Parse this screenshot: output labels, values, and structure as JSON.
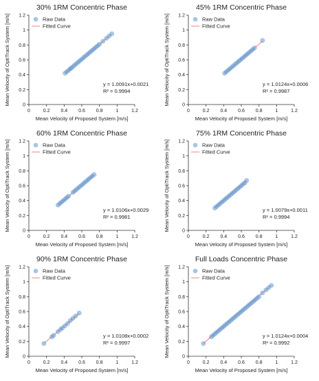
{
  "chart_data": [
    {
      "type": "scatter",
      "title": "30% 1RM Concentric Phase",
      "xlabel": "Mean Velocity of Proposed System [m/s]",
      "ylabel": "Mean Velocity of OptiTrack System [m/s]",
      "xlim": [
        0,
        1.2
      ],
      "ylim": [
        0,
        1.2
      ],
      "xticks": [
        "0",
        "0.2",
        "0.4",
        "0.6",
        "0.8",
        "1",
        "1.2"
      ],
      "yticks": [
        "0",
        "0.2",
        "0.4",
        "0.6",
        "0.8",
        "1",
        "1.2"
      ],
      "legend": [
        "Raw Data",
        "Fitted Curve"
      ],
      "legend_position": "top-left",
      "equation": "y = 1.0091x+0.0021",
      "r2": "R² = 0.9994",
      "fit": {
        "slope": 1.0091,
        "intercept": 0.0021
      },
      "x": [
        0.41,
        0.43,
        0.45,
        0.47,
        0.48,
        0.5,
        0.52,
        0.54,
        0.56,
        0.58,
        0.6,
        0.62,
        0.64,
        0.66,
        0.68,
        0.7,
        0.72,
        0.74,
        0.76,
        0.78,
        0.8,
        0.84,
        0.88,
        0.91,
        0.94
      ],
      "y": [
        0.42,
        0.44,
        0.46,
        0.48,
        0.49,
        0.51,
        0.53,
        0.55,
        0.57,
        0.59,
        0.61,
        0.63,
        0.65,
        0.67,
        0.69,
        0.71,
        0.73,
        0.75,
        0.77,
        0.79,
        0.81,
        0.85,
        0.89,
        0.92,
        0.95
      ]
    },
    {
      "type": "scatter",
      "title": "45% 1RM Concentric Phase",
      "xlabel": "Mean Velocity of Proposed System [m/s]",
      "ylabel": "Mean Velocity of OptiTrack System [m/s]",
      "xlim": [
        0,
        1.2
      ],
      "ylim": [
        0,
        1.2
      ],
      "xticks": [
        "0",
        "0.2",
        "0.4",
        "0.6",
        "0.8",
        "1",
        "1.2"
      ],
      "yticks": [
        "0",
        "0.2",
        "0.4",
        "0.6",
        "0.8",
        "1",
        "1.2"
      ],
      "legend": [
        "Raw Data",
        "Fitted Curve"
      ],
      "legend_position": "top-left",
      "equation": "y = 1.0124x+0.0006",
      "r2": "R² = 0.9987",
      "fit": {
        "slope": 1.0124,
        "intercept": 0.0006
      },
      "x": [
        0.41,
        0.43,
        0.45,
        0.47,
        0.49,
        0.51,
        0.53,
        0.55,
        0.57,
        0.59,
        0.61,
        0.63,
        0.65,
        0.67,
        0.69,
        0.71,
        0.73,
        0.75,
        0.84
      ],
      "y": [
        0.42,
        0.44,
        0.46,
        0.48,
        0.5,
        0.52,
        0.54,
        0.56,
        0.58,
        0.6,
        0.62,
        0.64,
        0.66,
        0.68,
        0.7,
        0.72,
        0.74,
        0.76,
        0.86
      ]
    },
    {
      "type": "scatter",
      "title": "60% 1RM Concentric Phase",
      "xlabel": "Mean Velocity of Proposed System [m/s]",
      "ylabel": "Mean Velocity of OptiTrack System [m/s]",
      "xlim": [
        0,
        1.2
      ],
      "ylim": [
        0,
        1.2
      ],
      "xticks": [
        "0",
        "0.2",
        "0.4",
        "0.6",
        "0.8",
        "1",
        "1.2"
      ],
      "yticks": [
        "0",
        "0.2",
        "0.4",
        "0.6",
        "0.8",
        "1",
        "1.2"
      ],
      "legend": [
        "Raw Data",
        "Fitted Curve"
      ],
      "legend_position": "top-left",
      "equation": "y = 1.0106x+0.0029",
      "r2": "R² = 0.9981",
      "fit": {
        "slope": 1.0106,
        "intercept": 0.0029
      },
      "x": [
        0.33,
        0.35,
        0.37,
        0.39,
        0.41,
        0.43,
        0.45,
        0.5,
        0.52,
        0.54,
        0.56,
        0.58,
        0.6,
        0.62,
        0.64,
        0.66,
        0.68,
        0.7,
        0.72,
        0.74
      ],
      "y": [
        0.34,
        0.36,
        0.38,
        0.4,
        0.42,
        0.44,
        0.46,
        0.51,
        0.53,
        0.55,
        0.57,
        0.59,
        0.61,
        0.63,
        0.65,
        0.67,
        0.69,
        0.71,
        0.73,
        0.75
      ]
    },
    {
      "type": "scatter",
      "title": "75% 1RM Concentric Phase",
      "xlabel": "Mean Velocity of Proposed System [m/s]",
      "ylabel": "Mean Velocity of OptiTrack System [m/s]",
      "xlim": [
        0,
        1.2
      ],
      "ylim": [
        0,
        1.2
      ],
      "xticks": [
        "0",
        "0.2",
        "0.4",
        "0.6",
        "0.8",
        "1",
        "1.2"
      ],
      "yticks": [
        "0",
        "0.2",
        "0.4",
        "0.6",
        "0.8",
        "1",
        "1.2"
      ],
      "legend": [
        "Raw Data",
        "Fitted Curve"
      ],
      "legend_position": "top-left",
      "equation": "y = 1.0079x+0.0011",
      "r2": "R² = 0.9994",
      "fit": {
        "slope": 1.0079,
        "intercept": 0.0011
      },
      "x": [
        0.3,
        0.32,
        0.34,
        0.36,
        0.38,
        0.4,
        0.42,
        0.44,
        0.46,
        0.48,
        0.5,
        0.52,
        0.54,
        0.56,
        0.58,
        0.6,
        0.62,
        0.64,
        0.66
      ],
      "y": [
        0.3,
        0.32,
        0.34,
        0.36,
        0.38,
        0.4,
        0.42,
        0.44,
        0.46,
        0.48,
        0.5,
        0.52,
        0.54,
        0.56,
        0.58,
        0.6,
        0.62,
        0.64,
        0.67
      ]
    },
    {
      "type": "scatter",
      "title": "90% 1RM Concentric Phase",
      "xlabel": "Mean Velocity of Proposed System [m/s]",
      "ylabel": "Mean Velocity of OptiTrack System [m/s]",
      "xlim": [
        0,
        1.2
      ],
      "ylim": [
        0,
        1.2
      ],
      "xticks": [
        "0",
        "0.2",
        "0.4",
        "0.6",
        "0.8",
        "1",
        "1.2"
      ],
      "yticks": [
        "0",
        "0.2",
        "0.4",
        "0.6",
        "0.8",
        "1",
        "1.2"
      ],
      "legend": [
        "Raw Data",
        "Fitted Curve"
      ],
      "legend_position": "top-left",
      "equation": "y = 1.0108x+0.0002",
      "r2": "R² = 0.9997",
      "fit": {
        "slope": 1.0108,
        "intercept": 0.0002
      },
      "x": [
        0.17,
        0.26,
        0.28,
        0.33,
        0.36,
        0.38,
        0.41,
        0.44,
        0.47,
        0.5,
        0.53,
        0.57
      ],
      "y": [
        0.17,
        0.26,
        0.28,
        0.33,
        0.36,
        0.38,
        0.41,
        0.44,
        0.48,
        0.51,
        0.54,
        0.58
      ]
    },
    {
      "type": "scatter",
      "title": "Full Loads Concentric Phase",
      "xlabel": "Mean Velocity of Proposed System [m/s]",
      "ylabel": "Mean Velocity of OptiTrack System [m/s]",
      "xlim": [
        0,
        1.2
      ],
      "ylim": [
        0,
        1.2
      ],
      "xticks": [
        "0",
        "0.2",
        "0.4",
        "0.6",
        "0.8",
        "1",
        "1.2"
      ],
      "yticks": [
        "0",
        "0.2",
        "0.4",
        "0.6",
        "0.8",
        "1",
        "1.2"
      ],
      "legend": [
        "Raw Data",
        "Fitted Curve"
      ],
      "legend_position": "top-left",
      "equation": "y = 1.0124x+0.0004",
      "r2": "R² = 0.9992",
      "fit": {
        "slope": 1.0124,
        "intercept": 0.0004
      },
      "x": [
        0.17,
        0.26,
        0.28,
        0.3,
        0.32,
        0.34,
        0.36,
        0.38,
        0.4,
        0.42,
        0.44,
        0.46,
        0.48,
        0.5,
        0.52,
        0.54,
        0.56,
        0.58,
        0.6,
        0.62,
        0.64,
        0.66,
        0.68,
        0.7,
        0.72,
        0.74,
        0.76,
        0.78,
        0.8,
        0.84,
        0.88,
        0.91,
        0.94
      ],
      "y": [
        0.17,
        0.26,
        0.28,
        0.3,
        0.32,
        0.34,
        0.36,
        0.38,
        0.4,
        0.42,
        0.44,
        0.46,
        0.48,
        0.5,
        0.52,
        0.54,
        0.56,
        0.58,
        0.6,
        0.62,
        0.64,
        0.66,
        0.68,
        0.7,
        0.72,
        0.74,
        0.76,
        0.78,
        0.8,
        0.85,
        0.89,
        0.92,
        0.95
      ]
    }
  ],
  "colors": {
    "point_fill": "#6a9fd4",
    "point_stroke": "#2f6fb5",
    "fit_line": "#f08080",
    "axis": "#333333",
    "text": "#222222"
  }
}
